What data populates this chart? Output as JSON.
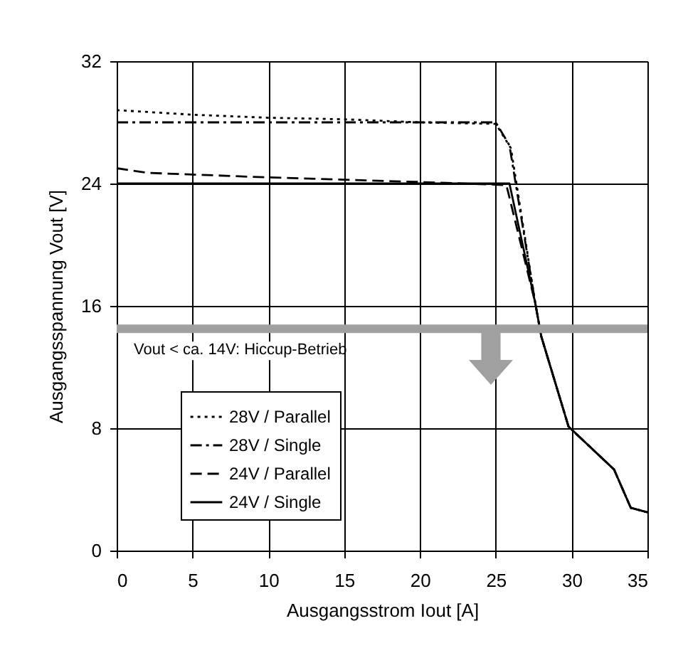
{
  "chart_data": {
    "type": "line",
    "xlabel": "Ausgangsstrom Iout [A]",
    "ylabel": "Ausgangsspannung Vout [V]",
    "xlim": [
      0,
      35
    ],
    "xticks": [
      0,
      5,
      10,
      15,
      20,
      25,
      30,
      35
    ],
    "ylim": [
      0,
      32
    ],
    "yticks": [
      0,
      8,
      16,
      24,
      32
    ],
    "grid": true,
    "legend": "bottom left",
    "marker": "none",
    "series": [
      {
        "name": "28V / Parallel",
        "color": "#000000",
        "line_style": "dotted",
        "x": [
          0,
          5,
          10,
          15,
          20,
          25,
          26,
          27.6,
          28,
          29.8,
          32.8,
          33.9,
          35
        ],
        "values": [
          28.8,
          28.5,
          28.3,
          28.2,
          28.0,
          27.9,
          26.3,
          16.2,
          14,
          8.1,
          5.3,
          2.8,
          2.5
        ]
      },
      {
        "name": "28V / Single",
        "color": "#000000",
        "line_style": "dashdot",
        "x": [
          0,
          25,
          25.9,
          27.6,
          28,
          29.8,
          32.8,
          33.9,
          35
        ],
        "values": [
          28,
          28,
          26.5,
          16.2,
          14,
          8.1,
          5.3,
          2.8,
          2.5
        ]
      },
      {
        "name": "24V / Parallel",
        "color": "#000000",
        "line_style": "dashed",
        "x": [
          0,
          2,
          10,
          20,
          25.7,
          27.6,
          28,
          29.8,
          32.8,
          33.9,
          35
        ],
        "values": [
          25,
          24.7,
          24.4,
          24.1,
          23.9,
          16.2,
          14,
          8.1,
          5.3,
          2.8,
          2.5
        ]
      },
      {
        "name": "24V / Single",
        "color": "#000000",
        "line_style": "solid",
        "x": [
          0,
          25.9,
          27.6,
          28,
          29.8,
          32.8,
          33.9,
          35
        ],
        "values": [
          24,
          24,
          16.2,
          14,
          8.1,
          5.3,
          2.8,
          2.5
        ]
      }
    ],
    "ref_lines": [
      {
        "axis": "y",
        "value": 14.5,
        "label": "Vout < ca. 14V: Hiccup-Betrieb",
        "color": "#a0a0a0"
      }
    ]
  }
}
